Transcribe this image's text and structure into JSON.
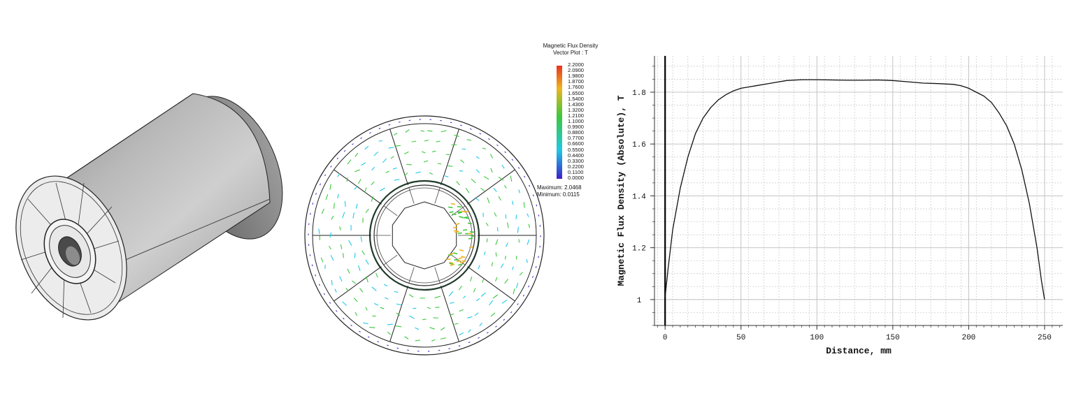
{
  "vector_plot": {
    "legend_title_line1": "Magnetic Flux Density",
    "legend_title_line2": "Vector Plot : T",
    "legend_ticks": [
      "2.2000",
      "2.0900",
      "1.9800",
      "1.8700",
      "1.7600",
      "1.6500",
      "1.5400",
      "1.4300",
      "1.3200",
      "1.2100",
      "1.1000",
      "0.9900",
      "0.8800",
      "0.7700",
      "0.6600",
      "0.5500",
      "0.4400",
      "0.3300",
      "0.2200",
      "0.1100",
      "0.0000"
    ],
    "maximum_label": "Maximum: 2.0468",
    "minimum_label": "Minimum: 0.0115",
    "colors": {
      "high": "#e8321e",
      "mid_high": "#f0b41e",
      "mid": "#3cc83c",
      "low": "#1ec8e8",
      "min": "#3c1ec8"
    }
  },
  "chart_data": {
    "type": "line",
    "xlabel": "Distance, mm",
    "ylabel": "Magnetic Flux Density (Absolute), T",
    "xlim": [
      -7,
      262
    ],
    "ylim": [
      0.9,
      1.94
    ],
    "x_ticks": [
      0,
      50,
      100,
      150,
      200,
      250
    ],
    "y_ticks": [
      1,
      1.2,
      1.4,
      1.6,
      1.8
    ],
    "x_tick_labels": [
      "0",
      "50",
      "100",
      "150",
      "200",
      "250"
    ],
    "y_tick_labels": [
      "1",
      "1.2",
      "1.4",
      "1.6",
      "1.8"
    ],
    "grid": true,
    "series": [
      {
        "x": [
          0,
          2,
          5,
          10,
          15,
          20,
          25,
          30,
          35,
          40,
          45,
          50,
          55,
          60,
          70,
          80,
          90,
          100,
          110,
          120,
          130,
          140,
          150,
          160,
          170,
          180,
          190,
          195,
          200,
          205,
          210,
          215,
          220,
          225,
          230,
          235,
          240,
          245,
          248,
          250
        ],
        "y": [
          1.01,
          1.12,
          1.27,
          1.43,
          1.55,
          1.64,
          1.7,
          1.74,
          1.77,
          1.79,
          1.805,
          1.815,
          1.82,
          1.825,
          1.835,
          1.845,
          1.848,
          1.848,
          1.847,
          1.846,
          1.846,
          1.847,
          1.845,
          1.84,
          1.835,
          1.833,
          1.83,
          1.825,
          1.815,
          1.8,
          1.785,
          1.76,
          1.72,
          1.67,
          1.6,
          1.5,
          1.37,
          1.2,
          1.07,
          1.0
        ]
      }
    ]
  }
}
